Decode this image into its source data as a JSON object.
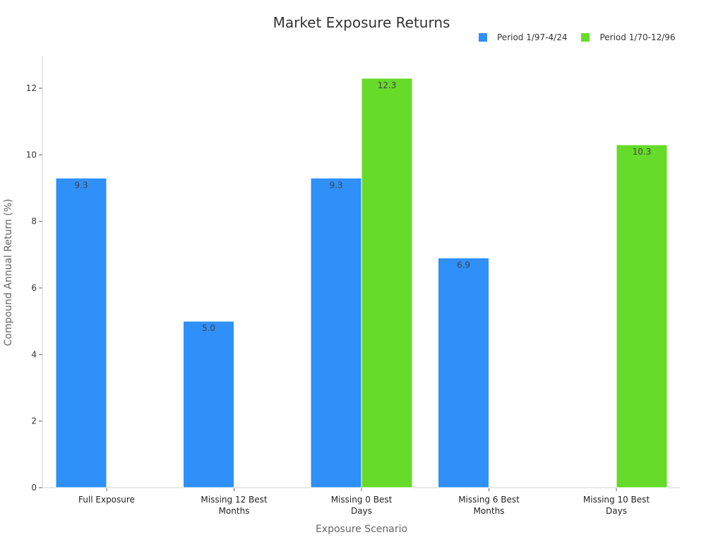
{
  "chart_data": {
    "type": "bar",
    "title": "Market Exposure Returns",
    "xlabel": "Exposure Scenario",
    "ylabel": "Compound Annual Return (%)",
    "categories": [
      "Full Exposure",
      "Missing 12 Best Months",
      "Missing 0 Best Days",
      "Missing 6 Best Months",
      "Missing 10 Best Days"
    ],
    "category_lines": [
      [
        "Full Exposure"
      ],
      [
        "Missing 12 Best",
        "Months"
      ],
      [
        "Missing 0 Best",
        "Days"
      ],
      [
        "Missing 6 Best",
        "Months"
      ],
      [
        "Missing 10 Best",
        "Days"
      ]
    ],
    "series": [
      {
        "name": "Period 1/97-4/24",
        "color": "#2e90f8",
        "values": [
          9.3,
          5.0,
          9.3,
          6.9,
          null
        ]
      },
      {
        "name": "Period 1/70-12/96",
        "color": "#66db29",
        "values": [
          null,
          null,
          12.3,
          null,
          10.3
        ]
      }
    ],
    "ylim": [
      0,
      13
    ],
    "yticks": [
      0,
      2,
      4,
      6,
      8,
      10,
      12
    ],
    "grid": false,
    "legend_position": "top-right",
    "data_labels": true
  }
}
